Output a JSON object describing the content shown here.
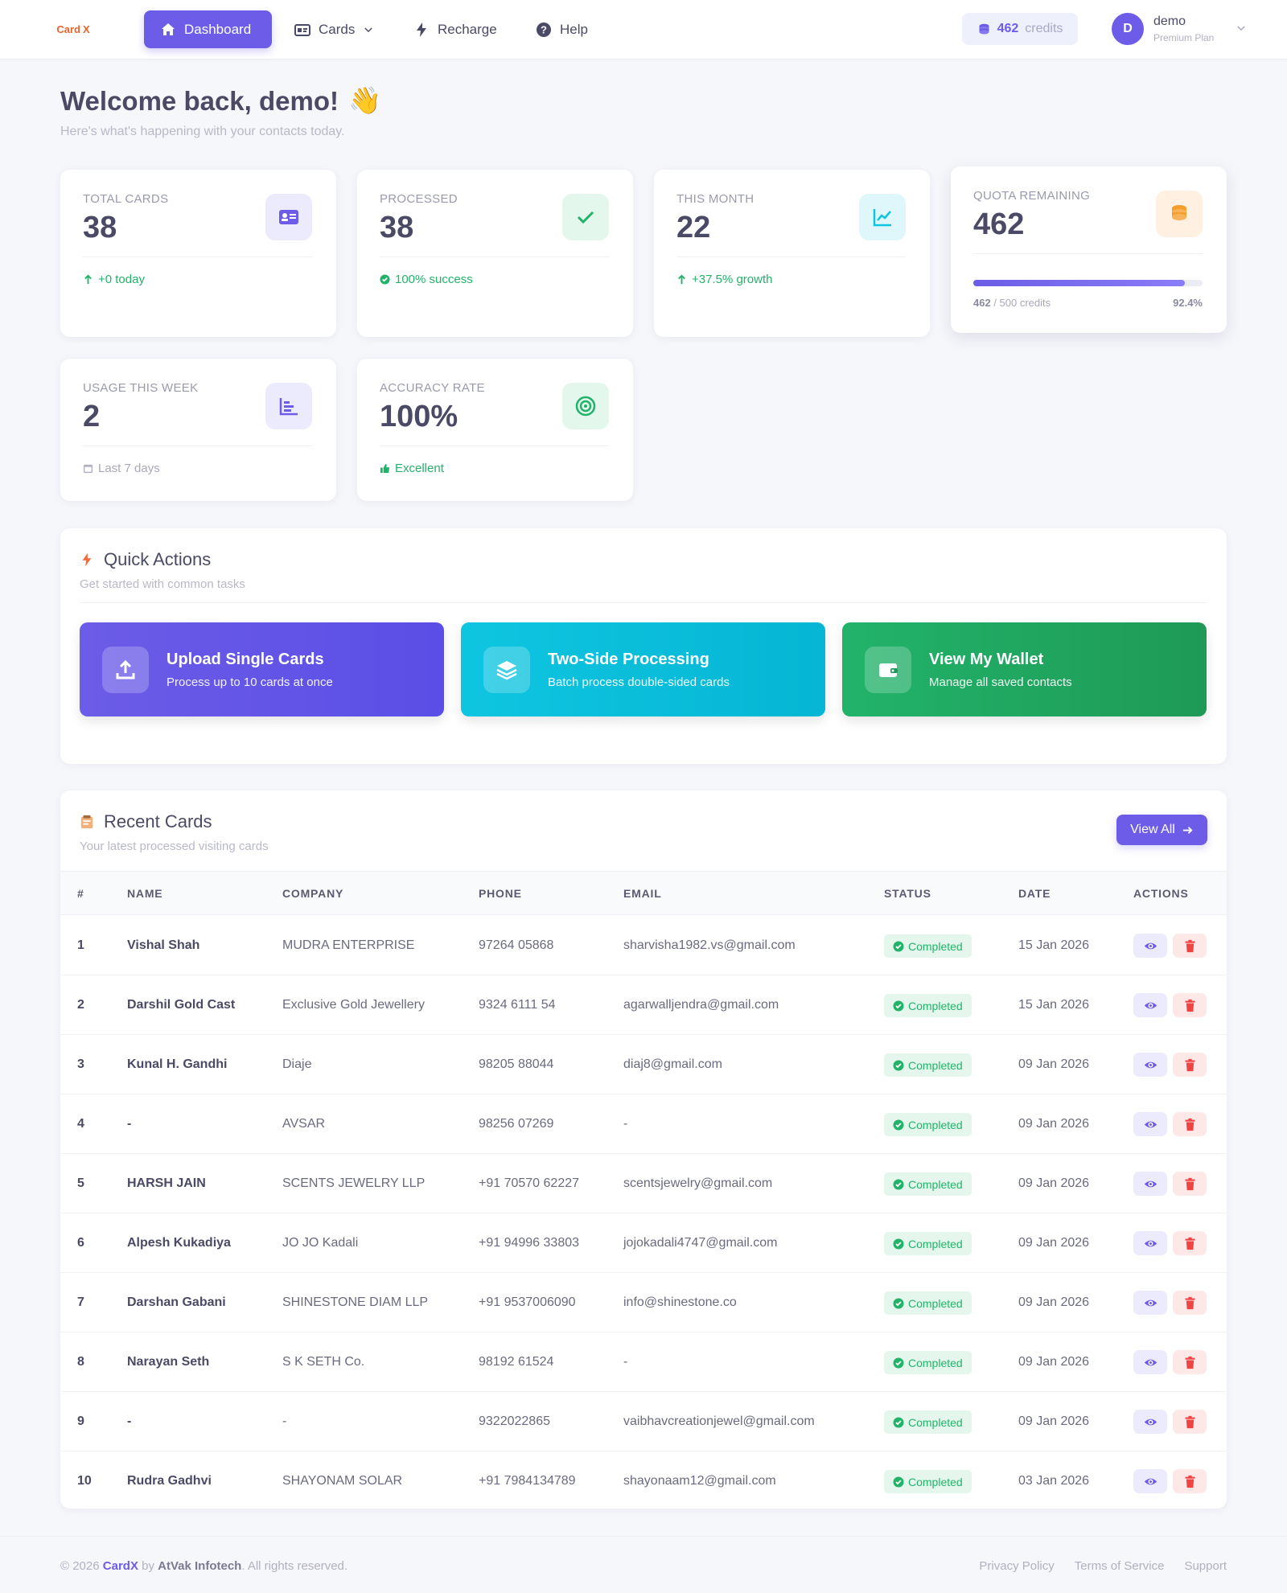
{
  "nav": {
    "logo_part1": "Card",
    "logo_part2": "X",
    "dashboard": "Dashboard",
    "cards": "Cards",
    "recharge": "Recharge",
    "help": "Help",
    "credits_value": "462",
    "credits_label": "credits",
    "avatar_initial": "D",
    "user_name": "demo",
    "user_plan": "Premium Plan"
  },
  "welcome": {
    "title": "Welcome back, demo!",
    "emoji": "👋",
    "subtitle": "Here's what's happening with your contacts today."
  },
  "stats": {
    "total_cards": {
      "label": "TOTAL CARDS",
      "value": "38",
      "foot": "+0 today"
    },
    "processed": {
      "label": "PROCESSED",
      "value": "38",
      "foot": "100% success"
    },
    "this_month": {
      "label": "THIS MONTH",
      "value": "22",
      "foot": "+37.5% growth"
    },
    "quota": {
      "label": "QUOTA REMAINING",
      "value": "462",
      "used": "462",
      "total": "/ 500 credits",
      "percent": "92.4%",
      "fraction": 0.924
    },
    "usage_week": {
      "label": "USAGE THIS WEEK",
      "value": "2",
      "foot": "Last 7 days"
    },
    "accuracy": {
      "label": "ACCURACY RATE",
      "value": "100%",
      "foot": "Excellent"
    }
  },
  "quick_actions": {
    "title": "Quick Actions",
    "subtitle": "Get started with common tasks",
    "items": [
      {
        "title": "Upload Single Cards",
        "desc": "Process up to 10 cards at once",
        "icon": "upload-icon",
        "color": "#6c5ce7"
      },
      {
        "title": "Two-Side Processing",
        "desc": "Batch process double-sided cards",
        "icon": "layers-icon",
        "color": "#0ec5e0"
      },
      {
        "title": "View My Wallet",
        "desc": "Manage all saved contacts",
        "icon": "wallet-icon",
        "color": "#22b36a"
      }
    ]
  },
  "recent": {
    "title": "Recent Cards",
    "subtitle": "Your latest processed visiting cards",
    "view_all": "View All",
    "columns": [
      "#",
      "NAME",
      "COMPANY",
      "PHONE",
      "EMAIL",
      "STATUS",
      "DATE",
      "ACTIONS"
    ],
    "rows": [
      {
        "num": "1",
        "name": "Vishal Shah",
        "company": "MUDRA ENTERPRISE",
        "phone": "97264 05868",
        "email": "sharvisha1982.vs@gmail.com",
        "status": "Completed",
        "date": "15 Jan 2026"
      },
      {
        "num": "2",
        "name": "Darshil Gold Cast",
        "company": "Exclusive Gold Jewellery",
        "phone": "9324 6111 54",
        "email": "agarwalljendra@gmail.com",
        "status": "Completed",
        "date": "15 Jan 2026"
      },
      {
        "num": "3",
        "name": "Kunal H. Gandhi",
        "company": "Diaje",
        "phone": "98205 88044",
        "email": "diaj8@gmail.com",
        "status": "Completed",
        "date": "09 Jan 2026"
      },
      {
        "num": "4",
        "name": "-",
        "company": "AVSAR",
        "phone": "98256 07269",
        "email": "-",
        "status": "Completed",
        "date": "09 Jan 2026"
      },
      {
        "num": "5",
        "name": "HARSH JAIN",
        "company": "SCENTS JEWELRY LLP",
        "phone": "+91 70570 62227",
        "email": "scentsjewelry@gmail.com",
        "status": "Completed",
        "date": "09 Jan 2026"
      },
      {
        "num": "6",
        "name": "Alpesh Kukadiya",
        "company": "JO JO Kadali",
        "phone": "+91 94996 33803",
        "email": "jojokadali4747@gmail.com",
        "status": "Completed",
        "date": "09 Jan 2026"
      },
      {
        "num": "7",
        "name": "Darshan Gabani",
        "company": "SHINESTONE DIAM LLP",
        "phone": "+91 9537006090",
        "email": "info@shinestone.co",
        "status": "Completed",
        "date": "09 Jan 2026"
      },
      {
        "num": "8",
        "name": "Narayan Seth",
        "company": "S K SETH Co.",
        "phone": "98192 61524",
        "email": "-",
        "status": "Completed",
        "date": "09 Jan 2026"
      },
      {
        "num": "9",
        "name": "-",
        "company": "-",
        "phone": "9322022865",
        "email": "vaibhavcreationjewel@gmail.com",
        "status": "Completed",
        "date": "09 Jan 2026"
      },
      {
        "num": "10",
        "name": "Rudra Gadhvi",
        "company": "SHAYONAM SOLAR",
        "phone": "+91 7984134789",
        "email": "shayonaam12@gmail.com",
        "status": "Completed",
        "date": "03 Jan 2026"
      }
    ]
  },
  "footer": {
    "copy_prefix": "© 2026",
    "brand": "CardX",
    "by": "by",
    "company": "AtVak Infotech",
    "suffix": ". All rights reserved.",
    "links": [
      "Privacy Policy",
      "Terms of Service",
      "Support"
    ]
  }
}
